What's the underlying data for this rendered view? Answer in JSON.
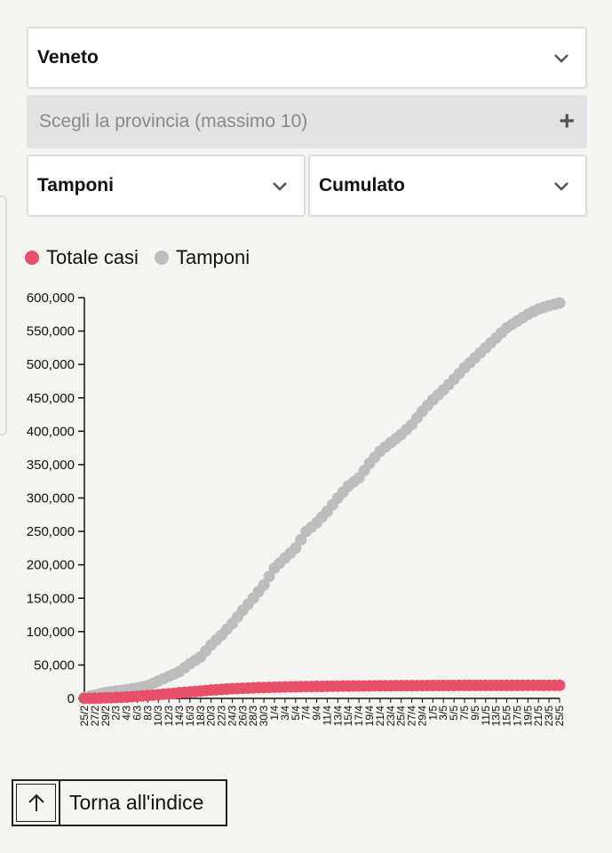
{
  "filters": {
    "region": "Veneto",
    "province_placeholder": "Scegli la provincia (massimo 10)",
    "province_add_icon": "plus-icon",
    "metric": "Tamponi",
    "mode": "Cumulato"
  },
  "legend": {
    "series_a": "Totale casi",
    "series_b": "Tamponi"
  },
  "colors": {
    "cases": "#e8506a",
    "tests": "#bdbdbd"
  },
  "back_link": {
    "label": "Torna all'indice"
  },
  "chart_data": {
    "type": "scatter",
    "y_ticks": [
      "600,000",
      "550,000",
      "500,000",
      "450,000",
      "400,000",
      "350,000",
      "300,000",
      "250,000",
      "200,000",
      "150,000",
      "100,000",
      "50,000",
      "0"
    ],
    "ylim": [
      0,
      600000
    ],
    "x_ticks": [
      "25/2",
      "27/2",
      "29/2",
      "2/3",
      "4/3",
      "6/3",
      "8/3",
      "10/3",
      "12/3",
      "14/3",
      "16/3",
      "18/3",
      "20/3",
      "22/3",
      "24/3",
      "26/3",
      "28/3",
      "30/3",
      "1/4",
      "3/4",
      "5/4",
      "7/4",
      "9/4",
      "11/4",
      "13/4",
      "15/4",
      "17/4",
      "19/4",
      "21/4",
      "23/4",
      "25/4",
      "27/4",
      "29/4",
      "1/5",
      "3/5",
      "5/5",
      "7/5",
      "9/5",
      "11/5",
      "13/5",
      "15/5",
      "17/5",
      "19/5",
      "21/5",
      "23/5",
      "25/5"
    ],
    "series": [
      {
        "name": "Totale casi",
        "values": [
          50,
          150,
          800,
          1300,
          2000,
          3100,
          4300,
          5500,
          7000,
          8400,
          9700,
          11000,
          12400,
          13500,
          14400,
          15200,
          15800,
          16300,
          16700,
          17100,
          17400,
          17700,
          17900,
          18100,
          18300,
          18500,
          18600,
          18800,
          18900,
          19000,
          19100,
          19150,
          19200,
          19250,
          19300,
          19350,
          19400,
          19420,
          19440,
          19460,
          19480,
          19500,
          19510,
          19520,
          19530,
          19540
        ]
      },
      {
        "name": "Tamponi",
        "values": [
          1500,
          5000,
          9000,
          11000,
          13000,
          15500,
          19000,
          26000,
          33000,
          40000,
          52000,
          62000,
          80000,
          95000,
          112000,
          132000,
          150000,
          170000,
          195000,
          210000,
          225000,
          250000,
          263000,
          280000,
          300000,
          318000,
          330000,
          352000,
          370000,
          383000,
          395000,
          410000,
          430000,
          447000,
          462000,
          478000,
          495000,
          510000,
          525000,
          540000,
          555000,
          565000,
          575000,
          583000,
          588000,
          592000
        ]
      }
    ]
  }
}
